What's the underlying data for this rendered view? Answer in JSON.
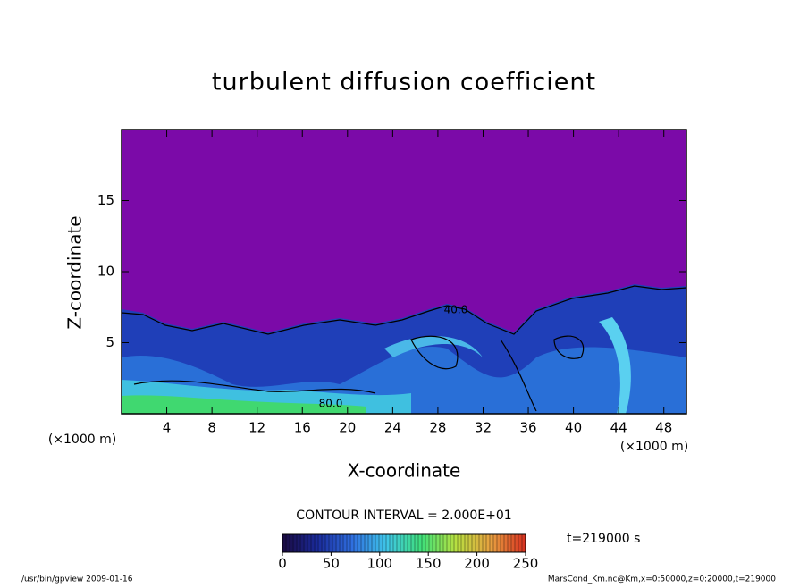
{
  "chart_data": {
    "type": "contour",
    "title": "turbulent diffusion coefficient",
    "xlabel": "X-coordinate",
    "ylabel": "Z-coordinate",
    "xunit": "(×1000 m)",
    "yunit": "(×1000 m)",
    "xlim": [
      0,
      50
    ],
    "ylim": [
      0,
      20
    ],
    "xticks": [
      4,
      8,
      12,
      16,
      20,
      24,
      28,
      32,
      36,
      40,
      44,
      48
    ],
    "yticks": [
      5,
      10,
      15
    ],
    "contour_labels": [
      "40.0",
      "80.0"
    ],
    "contour_interval_label": "CONTOUR INTERVAL = 2.000E+01",
    "time_label": "t=219000 s",
    "colorbar": {
      "lim": [
        0,
        250
      ],
      "ticks": [
        0,
        50,
        100,
        150,
        200,
        250
      ],
      "colors": [
        "#1a0a40",
        "#1a2a9a",
        "#2f6ee0",
        "#3fc6e8",
        "#3fe07a",
        "#b8e040",
        "#e8a040",
        "#d83020"
      ]
    }
  },
  "footer": {
    "left": "/usr/bin/gpview  2009-01-16",
    "right": "MarsCond_Km.nc@Km,x=0:50000,z=0:20000,t=219000"
  }
}
